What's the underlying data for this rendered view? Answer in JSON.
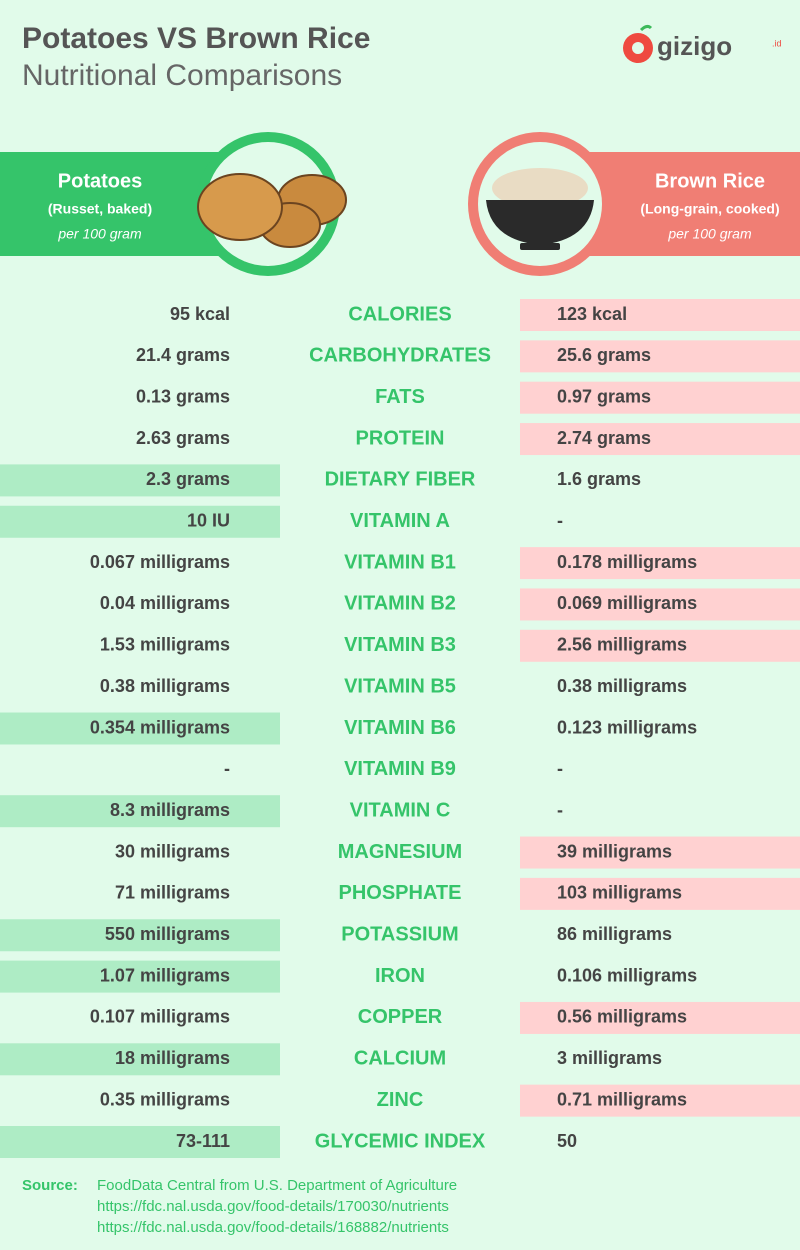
{
  "header": {
    "title": "Potatoes VS Brown Rice",
    "subtitle": "Nutritional Comparisons",
    "logo": "gizigo",
    "logo_suffix": ".id"
  },
  "left_panel": {
    "name": "Potatoes",
    "variant": "(Russet, baked)",
    "serving": "per 100 gram"
  },
  "right_panel": {
    "name": "Brown Rice",
    "variant": "(Long-grain, cooked)",
    "serving": "per 100 gram"
  },
  "rows": [
    {
      "potatoes": "95 kcal",
      "nutrient": "CALORIES",
      "brown_rice": "123 kcal",
      "highlight": "right"
    },
    {
      "potatoes": "21.4 grams",
      "nutrient": "CARBOHYDRATES",
      "brown_rice": "25.6 grams",
      "highlight": "right"
    },
    {
      "potatoes": "0.13 grams",
      "nutrient": "FATS",
      "brown_rice": "0.97 grams",
      "highlight": "right"
    },
    {
      "potatoes": "2.63 grams",
      "nutrient": "PROTEIN",
      "brown_rice": "2.74 grams",
      "highlight": "right"
    },
    {
      "potatoes": "2.3 grams",
      "nutrient": "DIETARY FIBER",
      "brown_rice": "1.6 grams",
      "highlight": "left"
    },
    {
      "potatoes": "10 IU",
      "nutrient": "VITAMIN A",
      "brown_rice": "-",
      "highlight": "left"
    },
    {
      "potatoes": "0.067 milligrams",
      "nutrient": "VITAMIN B1",
      "brown_rice": "0.178 milligrams",
      "highlight": "right"
    },
    {
      "potatoes": "0.04 milligrams",
      "nutrient": "VITAMIN B2",
      "brown_rice": "0.069 milligrams",
      "highlight": "right"
    },
    {
      "potatoes": "1.53 milligrams",
      "nutrient": "VITAMIN B3",
      "brown_rice": "2.56 milligrams",
      "highlight": "right"
    },
    {
      "potatoes": "0.38 milligrams",
      "nutrient": "VITAMIN B5",
      "brown_rice": "0.38 milligrams",
      "highlight": null
    },
    {
      "potatoes": "0.354 milligrams",
      "nutrient": "VITAMIN B6",
      "brown_rice": "0.123 milligrams",
      "highlight": "left"
    },
    {
      "potatoes": "-",
      "nutrient": "VITAMIN B9",
      "brown_rice": "-",
      "highlight": null
    },
    {
      "potatoes": "8.3 milligrams",
      "nutrient": "VITAMIN C",
      "brown_rice": "-",
      "highlight": "left"
    },
    {
      "potatoes": "30 milligrams",
      "nutrient": "MAGNESIUM",
      "brown_rice": "39 milligrams",
      "highlight": "right"
    },
    {
      "potatoes": "71 milligrams",
      "nutrient": "PHOSPHATE",
      "brown_rice": "103 milligrams",
      "highlight": "right"
    },
    {
      "potatoes": "550 milligrams",
      "nutrient": "POTASSIUM",
      "brown_rice": "86 milligrams",
      "highlight": "left"
    },
    {
      "potatoes": "1.07 milligrams",
      "nutrient": "IRON",
      "brown_rice": "0.106 milligrams",
      "highlight": "left"
    },
    {
      "potatoes": "0.107 milligrams",
      "nutrient": "COPPER",
      "brown_rice": "0.56 milligrams",
      "highlight": "right"
    },
    {
      "potatoes": "18 milligrams",
      "nutrient": "CALCIUM",
      "brown_rice": "3 milligrams",
      "highlight": "left"
    },
    {
      "potatoes": "0.35 milligrams",
      "nutrient": "ZINC",
      "brown_rice": "0.71 milligrams",
      "highlight": "right"
    },
    {
      "potatoes": "73-111",
      "nutrient": "GLYCEMIC INDEX",
      "brown_rice": "50",
      "highlight": "left"
    }
  ],
  "source": {
    "label": "Source:",
    "lines": [
      "FoodData Central from U.S. Department of Agriculture",
      "https://fdc.nal.usda.gov/food-details/170030/nutrients",
      "https://fdc.nal.usda.gov/food-details/168882/nutrients"
    ]
  }
}
